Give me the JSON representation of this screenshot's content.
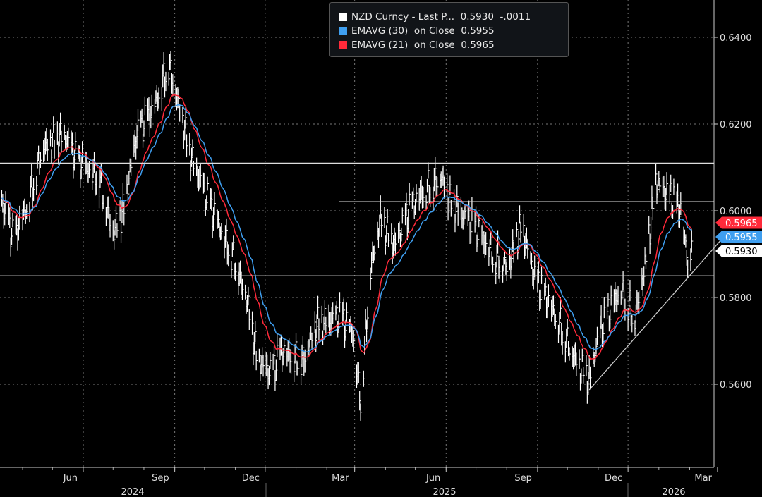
{
  "chart_data": {
    "type": "line",
    "title": "NZD Curncy",
    "ylim": [
      0.546,
      0.6475
    ],
    "yticks": [
      "0.6400",
      "0.6200",
      "0.6000",
      "0.5800",
      "0.5600"
    ],
    "ytick_values": [
      0.64,
      0.62,
      0.6,
      0.58,
      0.56
    ],
    "xticks": [
      {
        "label": "Jun",
        "date": "2024-06-01"
      },
      {
        "label": "Sep",
        "date": "2024-09-01"
      },
      {
        "label": "Dec",
        "date": "2024-12-01"
      },
      {
        "label": "Mar",
        "date": "2025-03-01"
      },
      {
        "label": "Jun",
        "date": "2025-06-01"
      },
      {
        "label": "Sep",
        "date": "2025-09-01"
      },
      {
        "label": "Dec",
        "date": "2025-12-01"
      },
      {
        "label": "Mar",
        "date": "2026-03-01"
      }
    ],
    "years": [
      {
        "label": "2024"
      },
      {
        "label": "2025"
      },
      {
        "label": "2026"
      }
    ],
    "x_range": [
      "2024-03-09",
      "2026-03-05"
    ],
    "series": [
      {
        "name": "NZD Curncy - Last Price",
        "color": "#ffffff",
        "type": "bars",
        "points": [
          [
            "2024-03-09",
            0.6031
          ],
          [
            "2024-03-23",
            0.5933
          ],
          [
            "2024-04-06",
            0.6015
          ],
          [
            "2024-04-21",
            0.6145
          ],
          [
            "2024-05-12",
            0.6177
          ],
          [
            "2024-05-26",
            0.6112
          ],
          [
            "2024-06-16",
            0.608
          ],
          [
            "2024-07-01",
            0.595
          ],
          [
            "2024-07-11",
            0.6
          ],
          [
            "2024-07-25",
            0.6177
          ],
          [
            "2024-08-09",
            0.6226
          ],
          [
            "2024-08-26",
            0.634
          ],
          [
            "2024-09-02",
            0.6275
          ],
          [
            "2024-09-17",
            0.6128
          ],
          [
            "2024-10-08",
            0.6
          ],
          [
            "2024-10-29",
            0.59
          ],
          [
            "2024-11-12",
            0.58
          ],
          [
            "2024-11-23",
            0.5657
          ],
          [
            "2024-12-07",
            0.5624
          ],
          [
            "2024-12-18",
            0.5673
          ],
          [
            "2025-01-08",
            0.5657
          ],
          [
            "2025-01-22",
            0.5738
          ],
          [
            "2025-02-13",
            0.5754
          ],
          [
            "2025-02-27",
            0.572
          ],
          [
            "2025-03-07",
            0.556
          ],
          [
            "2025-03-17",
            0.5868
          ],
          [
            "2025-03-27",
            0.598
          ],
          [
            "2025-04-10",
            0.5917
          ],
          [
            "2025-04-25",
            0.6
          ],
          [
            "2025-05-09",
            0.6047
          ],
          [
            "2025-05-27",
            0.608
          ],
          [
            "2025-06-06",
            0.6015
          ],
          [
            "2025-06-28",
            0.5966
          ],
          [
            "2025-07-19",
            0.59
          ],
          [
            "2025-08-02",
            0.5868
          ],
          [
            "2025-08-16",
            0.5966
          ],
          [
            "2025-08-30",
            0.5836
          ],
          [
            "2025-09-21",
            0.5754
          ],
          [
            "2025-10-12",
            0.564
          ],
          [
            "2025-10-23",
            0.5608
          ],
          [
            "2025-11-02",
            0.572
          ],
          [
            "2025-11-24",
            0.582
          ],
          [
            "2025-12-08",
            0.5754
          ],
          [
            "2025-12-18",
            0.5868
          ],
          [
            "2025-12-29",
            0.6063
          ],
          [
            "2026-01-12",
            0.6031
          ],
          [
            "2026-01-23",
            0.6
          ],
          [
            "2026-01-30",
            0.5884
          ],
          [
            "2026-02-03",
            0.593
          ]
        ]
      },
      {
        "name": "EMAVG (30) on Close",
        "color": "#3f9ff0",
        "period": 30
      },
      {
        "name": "EMAVG (21) on Close",
        "color": "#ff2a3a",
        "period": 21
      }
    ],
    "hlines": [
      {
        "value": 0.611,
        "from": "2024-03-09"
      },
      {
        "value": 0.6021,
        "from": "2025-02-13"
      },
      {
        "value": 0.585,
        "from": "2024-03-09"
      }
    ],
    "trendline": {
      "from": [
        "2025-10-23",
        0.5587
      ],
      "to": [
        "2026-03-05",
        0.5934
      ]
    },
    "legend": {
      "rows": [
        {
          "label": "NZD Curncy - Last P...",
          "value": "0.5930",
          "change": "-.0011",
          "color": "#ffffff"
        },
        {
          "label": "EMAVG (30)  on Close",
          "value": "0.5955",
          "color": "#3f9ff0"
        },
        {
          "label": "EMAVG (21)  on Close",
          "value": "0.5965",
          "color": "#ff2a3a"
        }
      ]
    },
    "value_tags": [
      {
        "value": "0.5965",
        "color": "#ff2a3a",
        "level": 0.5965
      },
      {
        "value": "0.5955",
        "color": "#3f9ff0",
        "level": 0.5955
      },
      {
        "value": "0.5930",
        "color": "#ffffff",
        "level": 0.593
      }
    ]
  }
}
